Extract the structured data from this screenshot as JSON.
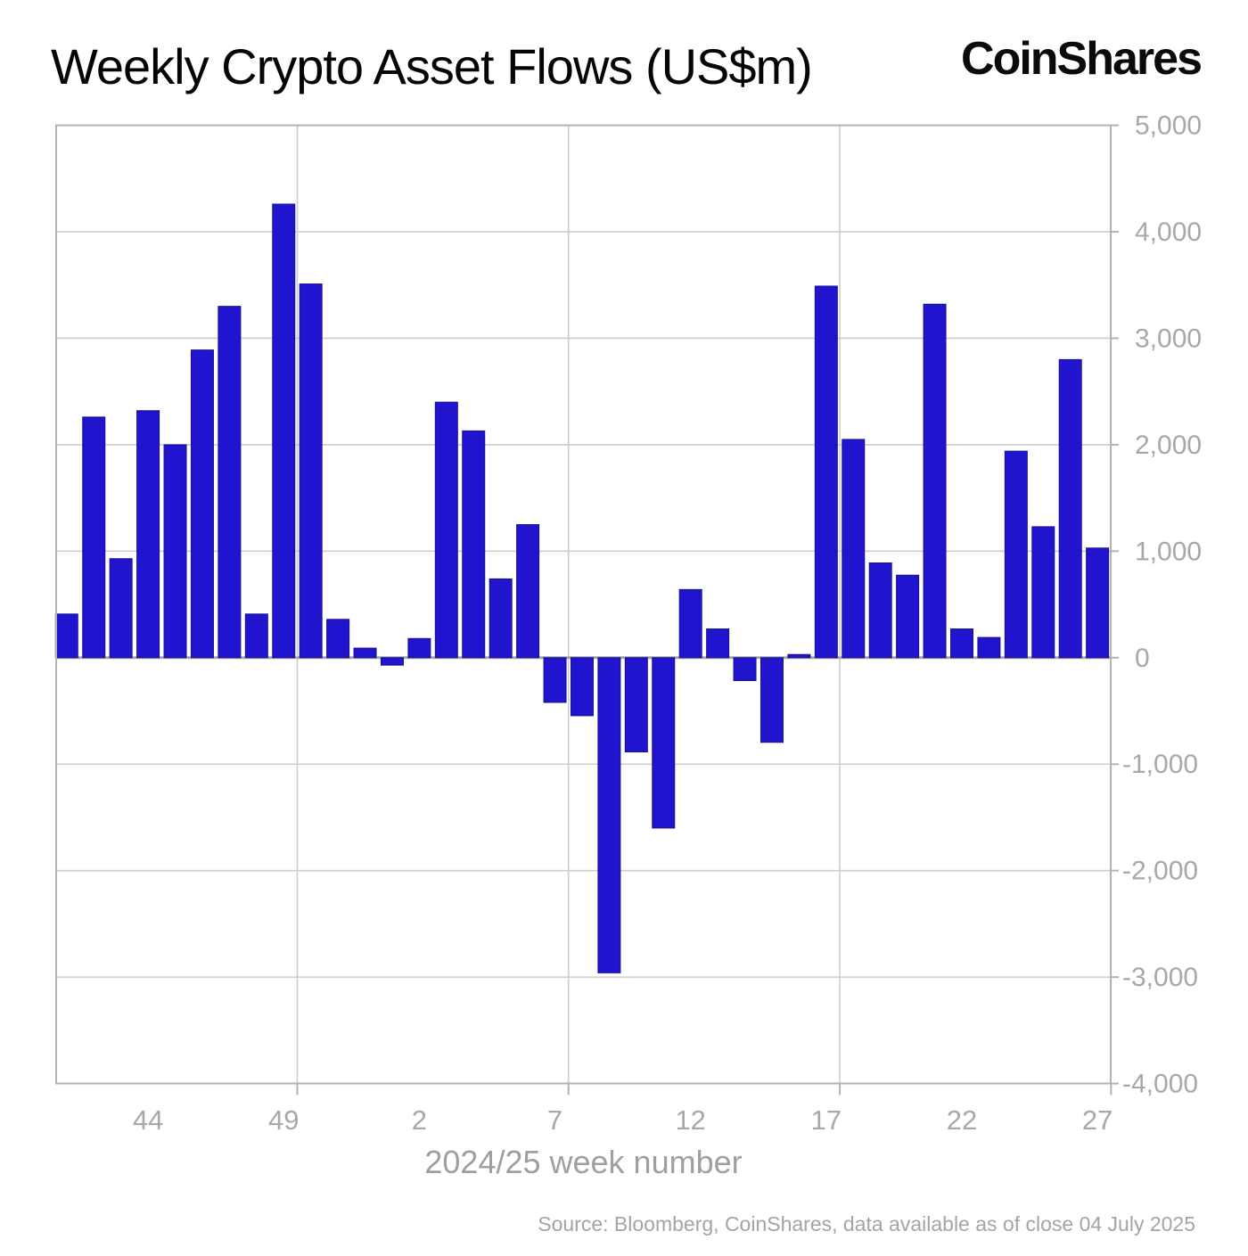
{
  "title": "Weekly Crypto Asset Flows (US$m)",
  "brand": "CoinShares",
  "source": "Source: Bloomberg, CoinShares, data available as of close 04 July 2025",
  "colors": {
    "bar": "#2014cf",
    "bar_edge": "#1a118f",
    "grid": "#cdcdcd",
    "zero_line": "#a6a6a6",
    "border": "#b3b3b3",
    "tick_label": "#a8a8a8",
    "title_text": "#050505"
  },
  "chart_data": {
    "type": "bar",
    "title": "Weekly Crypto Asset Flows (US$m)",
    "xlabel": "2024/25 week number",
    "ylabel": "",
    "categories": [
      41,
      42,
      43,
      44,
      45,
      46,
      47,
      48,
      49,
      50,
      51,
      52,
      1,
      2,
      3,
      4,
      5,
      6,
      7,
      8,
      9,
      10,
      11,
      12,
      13,
      14,
      15,
      16,
      17,
      18,
      19,
      20,
      21,
      22,
      23,
      24,
      25,
      26,
      27
    ],
    "values": [
      410,
      2260,
      930,
      2320,
      2000,
      2890,
      3300,
      410,
      4260,
      3510,
      360,
      90,
      -70,
      180,
      2400,
      2130,
      740,
      1250,
      -420,
      -545,
      -2960,
      -885,
      -1600,
      640,
      270,
      -215,
      -795,
      30,
      3490,
      2050,
      890,
      775,
      3320,
      270,
      190,
      1940,
      1230,
      2800,
      1030
    ],
    "ylim": [
      -4000,
      5000
    ],
    "ytick_step": 1000,
    "xtick_labels": [
      44,
      49,
      2,
      7,
      12,
      17,
      22,
      27
    ],
    "grid": true,
    "legend": null,
    "y_axis_side": "right"
  }
}
